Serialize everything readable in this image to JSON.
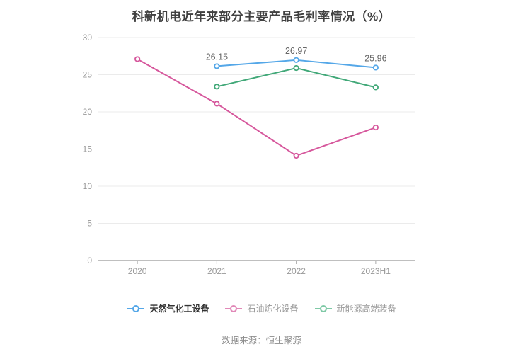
{
  "title": "科新机电近年来部分主要产品毛利率情况（%）",
  "source": "数据来源：恒生聚源",
  "chart_data": {
    "type": "line",
    "categories": [
      "2020",
      "2021",
      "2022",
      "2023H1"
    ],
    "series": [
      {
        "name": "天然气化工设备",
        "color": "#54a7e8",
        "legend_color": "#54a7e8",
        "legend_text_color": "#333333",
        "values": [
          null,
          26.15,
          26.97,
          25.96
        ],
        "labels": [
          "",
          "26.15",
          "26.97",
          "25.96"
        ],
        "show_labels": true
      },
      {
        "name": "石油炼化设备",
        "color": "#d6579c",
        "legend_color": "#e189b8",
        "legend_text_color": "#999999",
        "values": [
          27.1,
          21.1,
          14.1,
          17.9
        ],
        "labels": [
          "",
          "",
          "",
          ""
        ],
        "show_labels": false
      },
      {
        "name": "新能源高端装备",
        "color": "#41a878",
        "legend_color": "#7fc9a6",
        "legend_text_color": "#999999",
        "values": [
          null,
          23.4,
          25.9,
          23.3
        ],
        "labels": [
          "",
          "",
          "",
          ""
        ],
        "show_labels": false
      }
    ],
    "ylim": [
      0,
      30
    ],
    "yticks": [
      0,
      5,
      10,
      15,
      20,
      25,
      30
    ],
    "grid": true,
    "legend_position": "bottom",
    "data_label_color": "#666666",
    "axis_label_color": "#999999",
    "axis_line_color": "#aaaaaa",
    "grid_line_color": "#ebebeb"
  }
}
